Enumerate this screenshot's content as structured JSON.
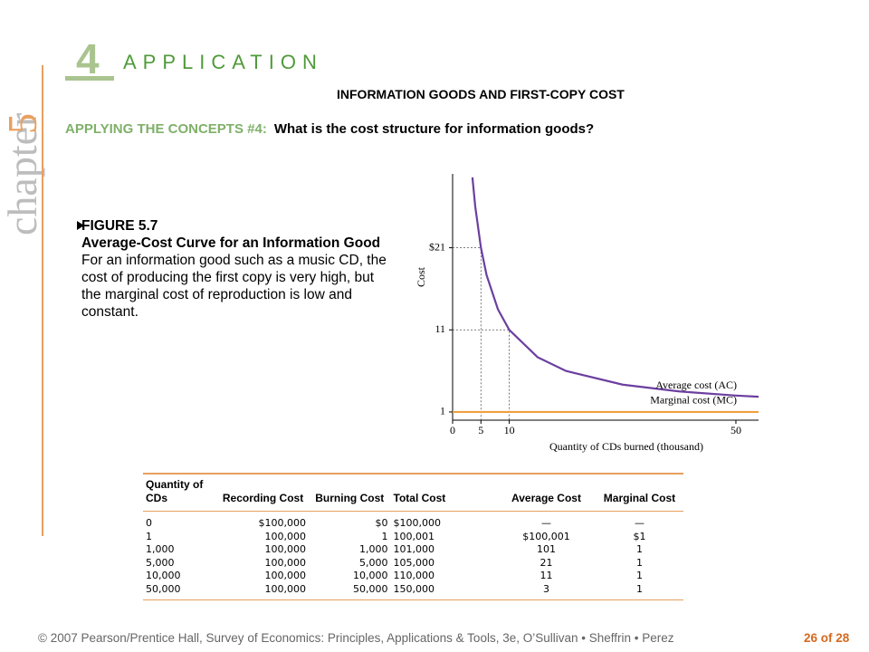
{
  "chapter_label": "chapter",
  "chapter_number": "5",
  "application_number": "4",
  "application_label": "APPLICATION",
  "title": "INFORMATION GOODS AND FIRST-COPY COST",
  "concept": {
    "lead": "APPLYING THE CONCEPTS #4:",
    "question": "What is the cost structure for information goods?"
  },
  "figure": {
    "label": "FIGURE 5.7",
    "title": "Average-Cost Curve for an Information Good",
    "text": "For an information good such as a music CD, the cost of producing the first copy is very high, but the marginal cost of reproduction is low and constant."
  },
  "chart_data": {
    "type": "line",
    "y_label": "Cost",
    "x_label": "Quantity of CDs burned (thousand)",
    "x": [
      0,
      3.5,
      4,
      5,
      6,
      8,
      10,
      15,
      20,
      30,
      40,
      50,
      54
    ],
    "series": [
      {
        "name": "Average cost (AC)",
        "color": "#6b3fa0",
        "values": [
          null,
          29.57,
          26,
          21,
          17.67,
          13.5,
          11,
          7.67,
          6,
          4.33,
          3.5,
          3,
          2.85
        ]
      },
      {
        "name": "Marginal cost (MC)",
        "color": "#f0a040",
        "values": [
          1,
          1,
          1,
          1,
          1,
          1,
          1,
          1,
          1,
          1,
          1,
          1,
          1
        ]
      }
    ],
    "xlim": [
      0,
      54
    ],
    "xticks": [
      0,
      5,
      10,
      50
    ],
    "ylim": [
      0,
      30
    ],
    "yticks": [
      1,
      11,
      {
        "value": 21,
        "label": "$21"
      }
    ],
    "grid": false
  },
  "table": {
    "header": [
      "Quantity of CDs",
      "Recording Cost",
      "Burning Cost",
      "Total Cost",
      "Average Cost",
      "Marginal Cost"
    ],
    "rows": [
      [
        "0",
        "$100,000",
        "$0",
        "$100,000",
        "—",
        "—"
      ],
      [
        "1",
        "100,000",
        "1",
        "100,001",
        "$100,001",
        "$1"
      ],
      [
        "1,000",
        "100,000",
        "1,000",
        "101,000",
        "101",
        "1"
      ],
      [
        "5,000",
        "100,000",
        "5,000",
        "105,000",
        "21",
        "1"
      ],
      [
        "10,000",
        "100,000",
        "10,000",
        "110,000",
        "11",
        "1"
      ],
      [
        "50,000",
        "100,000",
        "50,000",
        "150,000",
        "3",
        "1"
      ]
    ]
  },
  "footer": "© 2007 Pearson/Prentice Hall, Survey of Economics: Principles, Applications & Tools, 3e, O’Sullivan • Sheffrin • Perez",
  "page": "26 of 28"
}
